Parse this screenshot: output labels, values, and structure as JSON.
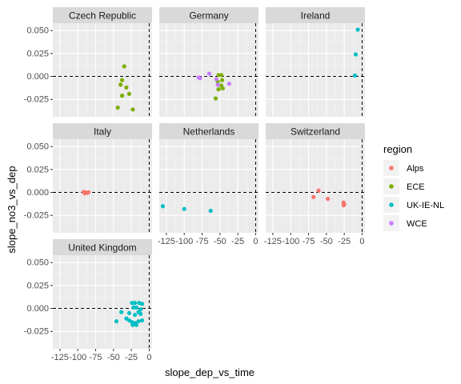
{
  "chart_data": {
    "type": "scatter",
    "xlabel": "slope_dep_vs_time",
    "ylabel": "slope_no3_vs_dep",
    "xlim": [
      -135,
      4
    ],
    "ylim": [
      -0.044,
      0.058
    ],
    "x_ticks": [
      -125,
      -100,
      -75,
      -50,
      -25,
      0
    ],
    "x_tick_labels": [
      "-125",
      "-100",
      "-75",
      "-50",
      "-25",
      "0"
    ],
    "y_ticks": [
      0.05,
      0.025,
      0.0,
      -0.025
    ],
    "y_tick_labels": [
      "0.050",
      "0.025",
      "0.000",
      "-0.025"
    ],
    "reference_lines": {
      "x": 0,
      "y": 0,
      "style": "dashed"
    },
    "grid": true,
    "legend": {
      "title": "region",
      "placement": "right",
      "items": [
        {
          "name": "Alps",
          "color": "#F8766D"
        },
        {
          "name": "ECE",
          "color": "#7CAE00"
        },
        {
          "name": "UK-IE-NL",
          "color": "#00BFC4"
        },
        {
          "name": "WCE",
          "color": "#C77CFF"
        }
      ]
    },
    "panels": [
      {
        "name": "Czech Republic",
        "row": 0,
        "col": 0,
        "region": "ECE",
        "points": [
          [
            -35,
            0.011
          ],
          [
            -38,
            -0.004
          ],
          [
            -32,
            -0.012
          ],
          [
            -40,
            -0.009
          ],
          [
            -38,
            -0.021
          ],
          [
            -28,
            -0.019
          ],
          [
            -44,
            -0.034
          ],
          [
            -23,
            -0.036
          ]
        ]
      },
      {
        "name": "Germany",
        "row": 0,
        "col": 1,
        "points": [
          {
            "x": -52,
            "y": 0.0015,
            "region": "ECE"
          },
          {
            "x": -48,
            "y": 0.0015,
            "region": "ECE"
          },
          {
            "x": -47,
            "y": -0.004,
            "region": "ECE"
          },
          {
            "x": -53,
            "y": -0.006,
            "region": "ECE"
          },
          {
            "x": -48,
            "y": -0.01,
            "region": "ECE"
          },
          {
            "x": -52,
            "y": -0.014,
            "region": "ECE"
          },
          {
            "x": -46,
            "y": -0.013,
            "region": "ECE"
          },
          {
            "x": -56,
            "y": -0.024,
            "region": "ECE"
          },
          {
            "x": -80,
            "y": -0.001,
            "region": "WCE"
          },
          {
            "x": -78,
            "y": -0.002,
            "region": "WCE"
          },
          {
            "x": -65,
            "y": 0.003,
            "region": "WCE"
          },
          {
            "x": -55,
            "y": -0.003,
            "region": "WCE"
          },
          {
            "x": -53,
            "y": -0.009,
            "region": "WCE"
          },
          {
            "x": -37,
            "y": -0.008,
            "region": "WCE"
          }
        ]
      },
      {
        "name": "Ireland",
        "row": 0,
        "col": 2,
        "region": "UK-IE-NL",
        "points": [
          [
            -6,
            0.051
          ],
          [
            -9,
            0.024
          ],
          [
            -10,
            0.001
          ]
        ]
      },
      {
        "name": "Italy",
        "row": 1,
        "col": 0,
        "region": "Alps",
        "points": [
          [
            -92,
            0.0005
          ],
          [
            -89,
            0.0
          ],
          [
            -87,
            -0.0005
          ],
          [
            -90,
            -0.001
          ],
          [
            -85,
            0.0002
          ]
        ]
      },
      {
        "name": "Netherlands",
        "row": 1,
        "col": 1,
        "region": "UK-IE-NL",
        "points": [
          [
            -130,
            -0.015
          ],
          [
            -100,
            -0.018
          ],
          [
            -63,
            -0.02
          ]
        ]
      },
      {
        "name": "Switzerland",
        "row": 1,
        "col": 2,
        "region": "Alps",
        "points": [
          [
            -68,
            -0.005
          ],
          [
            -61,
            0.002
          ],
          [
            -48,
            -0.007
          ],
          [
            -26,
            -0.011
          ],
          [
            -26,
            -0.014
          ],
          [
            -25,
            -0.013
          ]
        ]
      },
      {
        "name": "United Kingdom",
        "row": 2,
        "col": 0,
        "region": "UK-IE-NL",
        "points": [
          [
            -14,
            0.006
          ],
          [
            -20,
            0.006
          ],
          [
            -24,
            0.006
          ],
          [
            -22,
            0.001
          ],
          [
            -18,
            0.001
          ],
          [
            -10,
            0.005
          ],
          [
            -12,
            -0.001
          ],
          [
            -39,
            -0.004
          ],
          [
            -15,
            -0.004
          ],
          [
            -28,
            -0.005
          ],
          [
            -20,
            -0.007
          ],
          [
            -12,
            -0.006
          ],
          [
            -32,
            -0.011
          ],
          [
            -46,
            -0.014
          ],
          [
            -28,
            -0.013
          ],
          [
            -24,
            -0.015
          ],
          [
            -20,
            -0.016
          ],
          [
            -15,
            -0.014
          ],
          [
            -10,
            -0.013
          ],
          [
            -23,
            -0.018
          ],
          [
            -18,
            -0.018
          ]
        ]
      }
    ]
  }
}
